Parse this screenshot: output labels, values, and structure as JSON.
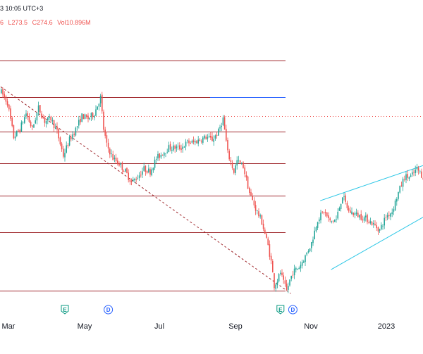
{
  "header": {
    "timestamp": "3 10:05 UTC+3",
    "ohlc_prefix": "6",
    "low": "L273.5",
    "close": "C274.6",
    "volume": "Vol10.896M"
  },
  "colors": {
    "up": "#26a69a",
    "down": "#ef5350",
    "level_line": "#a0282d",
    "blue_line": "#2962ff",
    "dotted_line": "#ef5350",
    "channel": "#29c6e6",
    "trend": "#a0282d"
  },
  "chart_data": {
    "type": "candlestick",
    "x_tick_labels": [
      "Mar",
      "May",
      "Jul",
      "Sep",
      "Nov",
      "2023"
    ],
    "y_range": [
      270,
      372
    ],
    "horizontal_levels": [
      362,
      348,
      335,
      323,
      311,
      297,
      275
    ],
    "blue_level": 348,
    "dotted_level": 341,
    "trendline": {
      "start": {
        "t": 0,
        "v": 352
      },
      "end": {
        "t": 187,
        "v": 274
      }
    },
    "channel": {
      "upper": {
        "start": {
          "t": 206,
          "v": 309
        },
        "end": {
          "t": 276,
          "v": 323
        }
      },
      "lower": {
        "start": {
          "t": 213,
          "v": 283
        },
        "end": {
          "t": 276,
          "v": 304
        }
      }
    },
    "event_markers": [
      {
        "t": 41,
        "label": "E"
      },
      {
        "t": 69,
        "label": "D"
      },
      {
        "t": 180,
        "label": "E"
      },
      {
        "t": 188,
        "label": "D"
      }
    ],
    "anchors": [
      [
        0,
        350
      ],
      [
        4,
        346
      ],
      [
        8,
        333
      ],
      [
        12,
        336
      ],
      [
        16,
        342
      ],
      [
        20,
        336
      ],
      [
        24,
        344
      ],
      [
        28,
        339
      ],
      [
        32,
        340
      ],
      [
        36,
        335
      ],
      [
        40,
        326
      ],
      [
        44,
        332
      ],
      [
        48,
        336
      ],
      [
        52,
        341
      ],
      [
        56,
        340
      ],
      [
        60,
        342
      ],
      [
        64,
        348
      ],
      [
        66,
        336
      ],
      [
        68,
        330
      ],
      [
        72,
        325
      ],
      [
        76,
        323
      ],
      [
        80,
        320
      ],
      [
        84,
        316
      ],
      [
        88,
        318
      ],
      [
        92,
        321
      ],
      [
        96,
        320
      ],
      [
        100,
        325
      ],
      [
        104,
        327
      ],
      [
        108,
        329
      ],
      [
        112,
        329
      ],
      [
        116,
        329
      ],
      [
        120,
        331
      ],
      [
        124,
        331
      ],
      [
        128,
        332
      ],
      [
        132,
        333
      ],
      [
        136,
        332
      ],
      [
        140,
        335
      ],
      [
        143,
        340
      ],
      [
        146,
        327
      ],
      [
        150,
        320
      ],
      [
        152,
        324
      ],
      [
        156,
        322
      ],
      [
        160,
        312
      ],
      [
        164,
        306
      ],
      [
        168,
        301
      ],
      [
        172,
        292
      ],
      [
        174,
        286
      ],
      [
        176,
        277
      ],
      [
        178,
        279
      ],
      [
        180,
        282
      ],
      [
        182,
        278
      ],
      [
        184,
        275
      ],
      [
        186,
        279
      ],
      [
        188,
        282
      ],
      [
        192,
        284
      ],
      [
        196,
        288
      ],
      [
        200,
        293
      ],
      [
        204,
        302
      ],
      [
        208,
        305
      ],
      [
        212,
        301
      ],
      [
        216,
        302
      ],
      [
        220,
        311
      ],
      [
        224,
        305
      ],
      [
        228,
        304
      ],
      [
        232,
        303
      ],
      [
        236,
        302
      ],
      [
        240,
        300
      ],
      [
        244,
        298
      ],
      [
        248,
        303
      ],
      [
        252,
        305
      ],
      [
        256,
        312
      ],
      [
        260,
        318
      ],
      [
        264,
        318
      ],
      [
        268,
        321
      ],
      [
        272,
        318
      ],
      [
        276,
        320
      ]
    ]
  }
}
